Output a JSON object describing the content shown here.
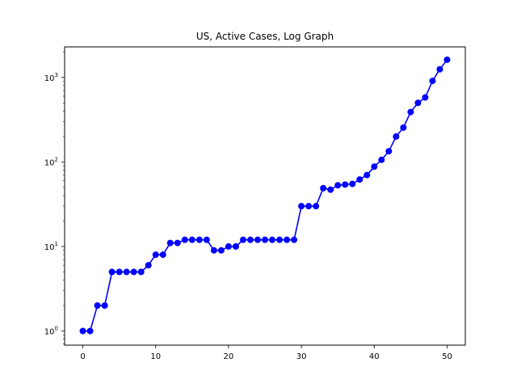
{
  "chart_data": {
    "type": "line",
    "title": "US, Active Cases, Log Graph",
    "xlabel": "",
    "ylabel": "",
    "xlim": [
      -2.5,
      52.5
    ],
    "ylim": [
      0.68,
      2300
    ],
    "yscale": "log",
    "grid": false,
    "color": "#0000ff",
    "marker": "circle",
    "x_ticks": [
      0,
      10,
      20,
      30,
      40,
      50
    ],
    "x_tick_labels": [
      "0",
      "10",
      "20",
      "30",
      "40",
      "50"
    ],
    "y_ticks": [
      1,
      10,
      100,
      1000
    ],
    "y_tick_labels": [
      {
        "base": "10",
        "exp": "0"
      },
      {
        "base": "10",
        "exp": "1"
      },
      {
        "base": "10",
        "exp": "2"
      },
      {
        "base": "10",
        "exp": "3"
      }
    ],
    "x": [
      0,
      1,
      2,
      3,
      4,
      5,
      6,
      7,
      8,
      9,
      10,
      11,
      12,
      13,
      14,
      15,
      16,
      17,
      18,
      19,
      20,
      21,
      22,
      23,
      24,
      25,
      26,
      27,
      28,
      29,
      30,
      31,
      32,
      33,
      34,
      35,
      36,
      37,
      38,
      39,
      40,
      41,
      42,
      43,
      44,
      45,
      46,
      47,
      48,
      49,
      50
    ],
    "values": [
      1,
      1,
      2,
      2,
      5,
      5,
      5,
      5,
      5,
      6,
      8,
      8,
      11,
      11,
      12,
      12,
      12,
      12,
      9,
      9,
      10,
      10,
      12,
      12,
      12,
      12,
      12,
      12,
      12,
      12,
      30,
      30,
      30,
      49,
      47,
      53,
      54,
      55,
      62,
      70,
      88,
      106,
      134,
      200,
      255,
      390,
      500,
      580,
      910,
      1250,
      1620
    ]
  }
}
